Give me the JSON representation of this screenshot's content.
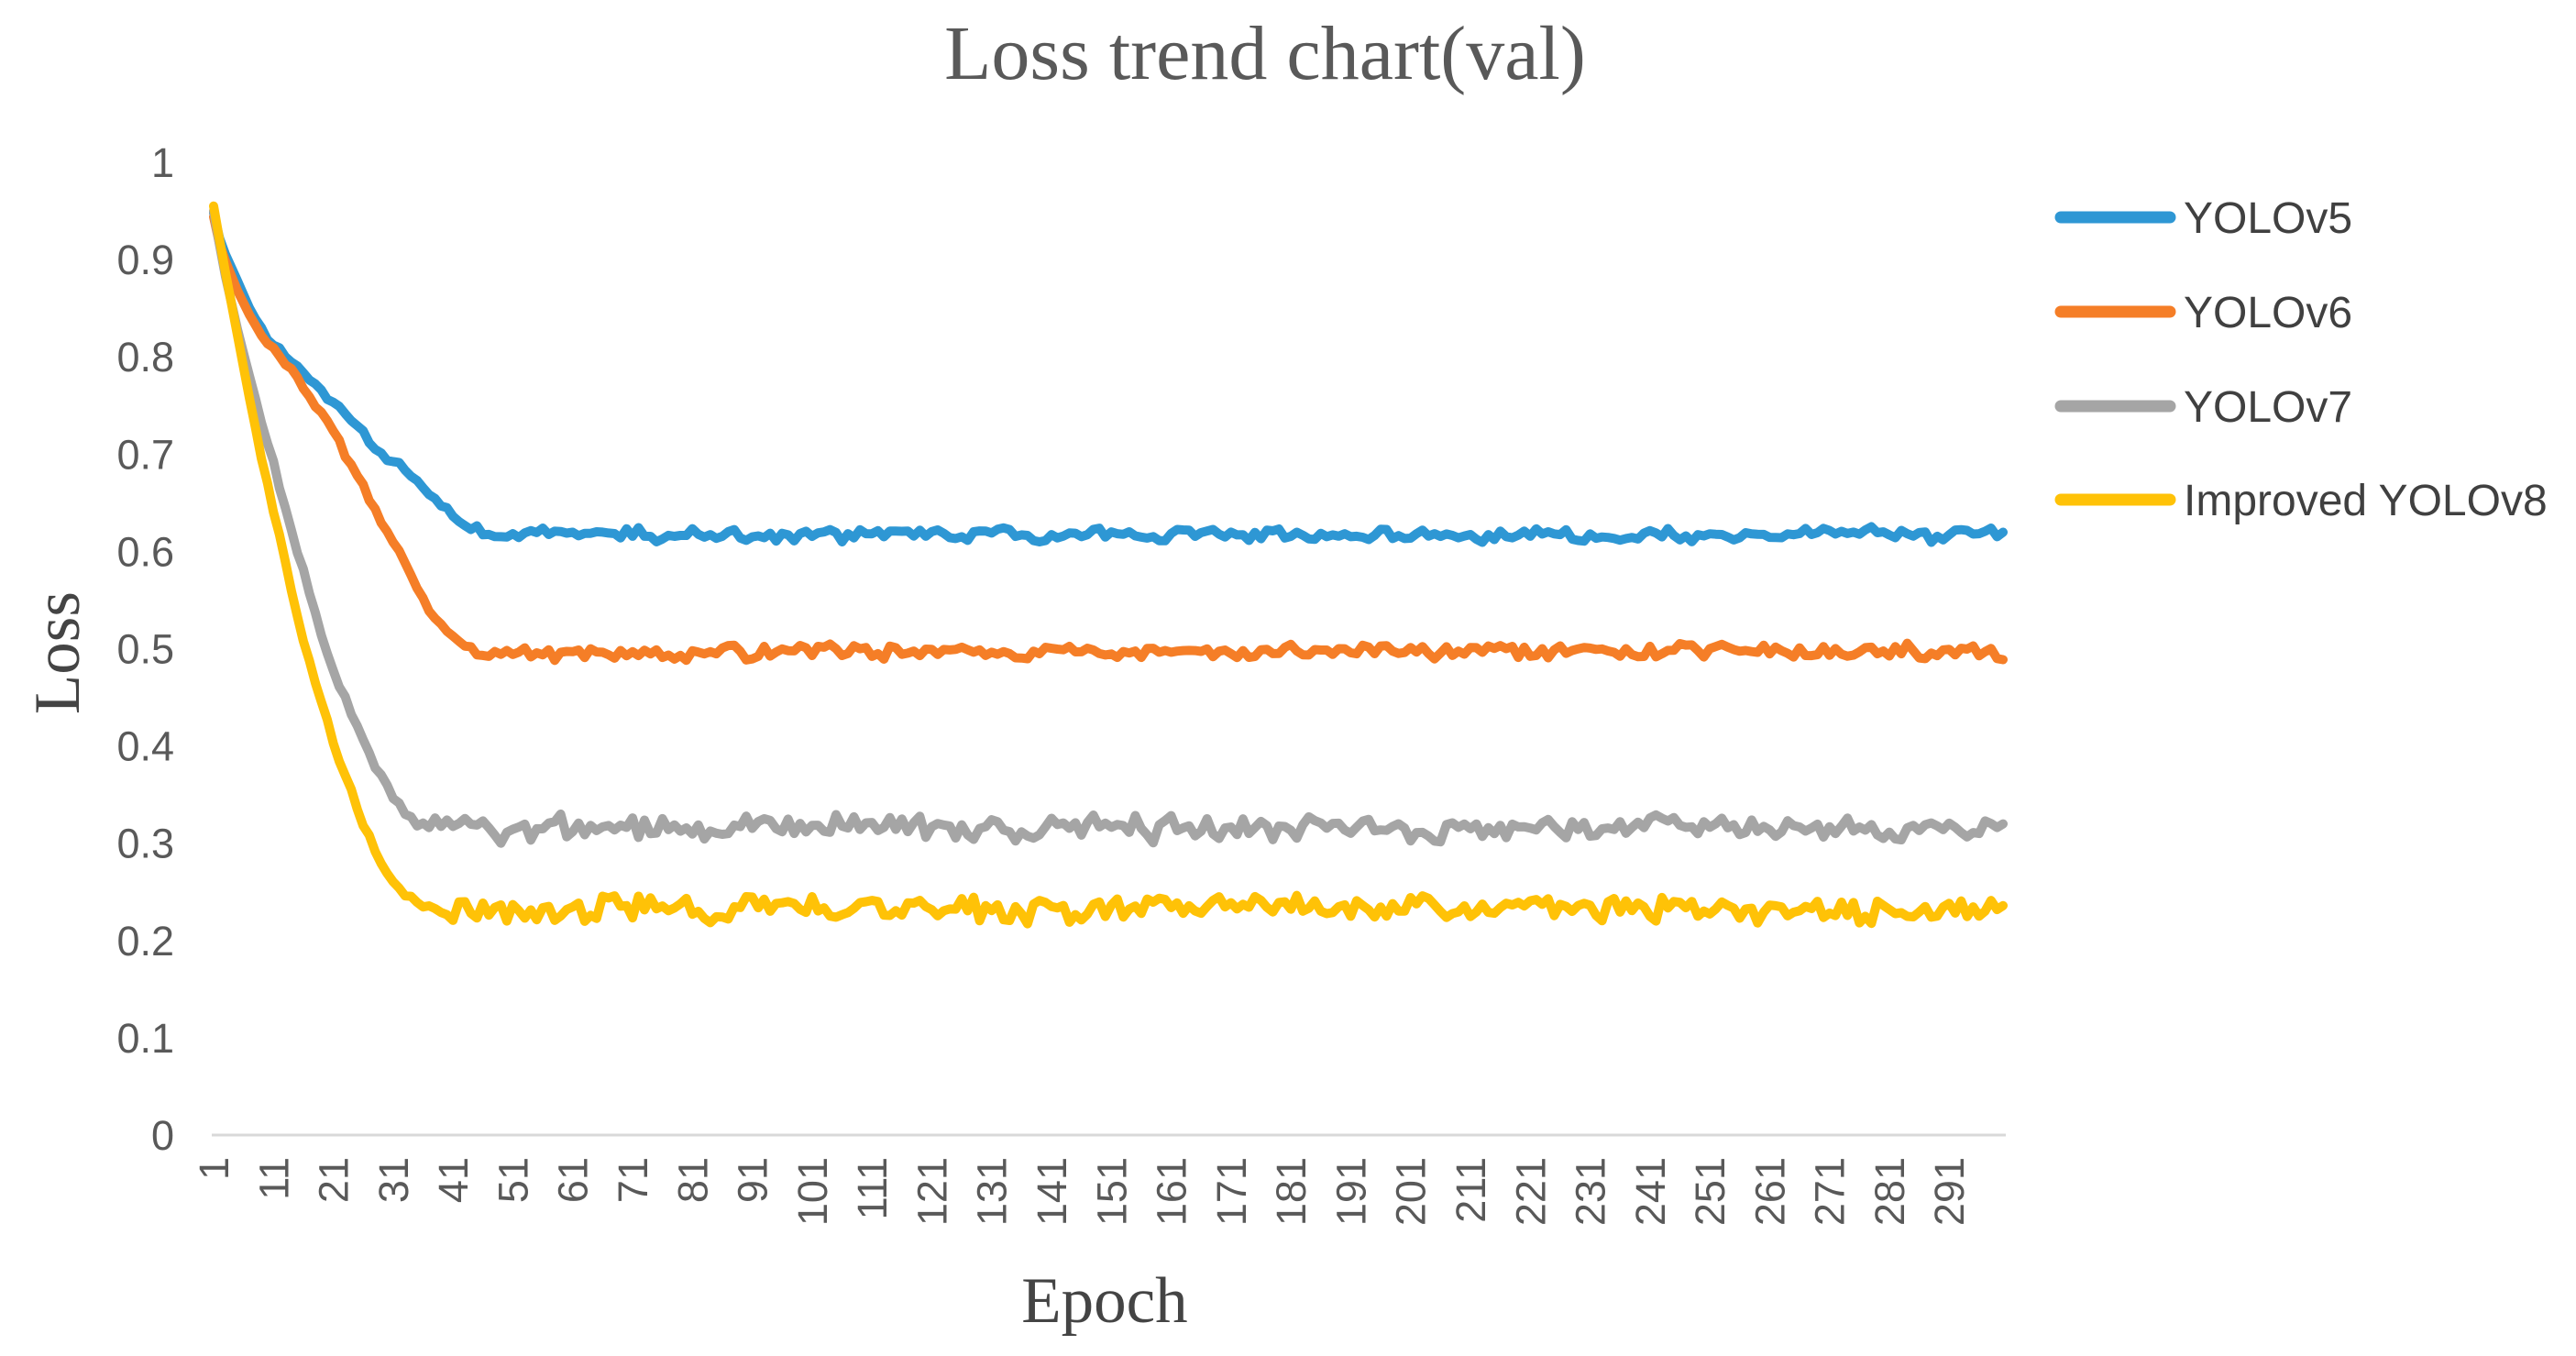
{
  "title": "Loss trend chart(val)",
  "axes": {
    "y_title": "Loss",
    "x_title": "Epoch",
    "y_tick_labels": [
      "1",
      "0.9",
      "0.8",
      "0.7",
      "0.6",
      "0.5",
      "0.4",
      "0.3",
      "0.2",
      "0.1",
      "0"
    ],
    "x_tick_labels": [
      1,
      11,
      21,
      31,
      41,
      51,
      61,
      71,
      81,
      91,
      101,
      111,
      121,
      131,
      141,
      151,
      161,
      171,
      181,
      191,
      201,
      211,
      221,
      231,
      241,
      251,
      261,
      271,
      281,
      291
    ],
    "axis_line_color": "#D9D9D9"
  },
  "legend": {
    "items": [
      {
        "label": "YOLOv5",
        "color": "#2E97D4"
      },
      {
        "label": "YOLOv6",
        "color": "#F57E27"
      },
      {
        "label": "YOLOv7",
        "color": "#A5A5A5"
      },
      {
        "label": "Improved YOLOv8",
        "color": "#FFC207"
      }
    ]
  },
  "chart_data": {
    "type": "line",
    "title": "Loss trend chart(val)",
    "xlabel": "Epoch",
    "ylabel": "Loss",
    "xlim": [
      1,
      300
    ],
    "ylim": [
      0,
      1
    ],
    "grid": "off",
    "legend_position": "right",
    "x_tick_step": 10,
    "series": [
      {
        "name": "YOLOv5",
        "color": "#2E97D4",
        "anchors": [
          [
            1,
            0.948
          ],
          [
            2,
            0.922
          ],
          [
            3,
            0.905
          ],
          [
            5,
            0.878
          ],
          [
            7,
            0.85
          ],
          [
            9,
            0.828
          ],
          [
            11,
            0.812
          ],
          [
            13,
            0.8
          ],
          [
            15,
            0.788
          ],
          [
            17,
            0.775
          ],
          [
            19,
            0.763
          ],
          [
            21,
            0.752
          ],
          [
            23,
            0.74
          ],
          [
            25,
            0.728
          ],
          [
            27,
            0.714
          ],
          [
            29,
            0.7
          ],
          [
            31,
            0.693
          ],
          [
            33,
            0.684
          ],
          [
            35,
            0.671
          ],
          [
            37,
            0.659
          ],
          [
            39,
            0.648
          ],
          [
            41,
            0.638
          ],
          [
            43,
            0.629
          ],
          [
            45,
            0.623
          ],
          [
            47,
            0.618
          ],
          [
            49,
            0.614
          ],
          [
            51,
            0.617
          ],
          [
            53,
            0.617
          ]
        ],
        "plateau": {
          "from": 53,
          "to": 300,
          "level": 0.617,
          "amplitude": 0.007
        }
      },
      {
        "name": "YOLOv6",
        "color": "#F57E27",
        "anchors": [
          [
            1,
            0.944
          ],
          [
            2,
            0.916
          ],
          [
            3,
            0.898
          ],
          [
            5,
            0.868
          ],
          [
            7,
            0.843
          ],
          [
            9,
            0.822
          ],
          [
            11,
            0.806
          ],
          [
            13,
            0.794
          ],
          [
            15,
            0.779
          ],
          [
            17,
            0.761
          ],
          [
            19,
            0.742
          ],
          [
            21,
            0.722
          ],
          [
            23,
            0.7
          ],
          [
            25,
            0.678
          ],
          [
            27,
            0.655
          ],
          [
            29,
            0.632
          ],
          [
            31,
            0.609
          ],
          [
            33,
            0.586
          ],
          [
            35,
            0.563
          ],
          [
            37,
            0.541
          ],
          [
            39,
            0.523
          ],
          [
            41,
            0.51
          ],
          [
            43,
            0.501
          ],
          [
            45,
            0.496
          ],
          [
            47,
            0.494
          ]
        ],
        "plateau": {
          "from": 47,
          "to": 300,
          "level": 0.497,
          "amplitude": 0.008
        }
      },
      {
        "name": "YOLOv7",
        "color": "#A5A5A5",
        "anchors": [
          [
            1,
            0.95
          ],
          [
            2,
            0.915
          ],
          [
            3,
            0.882
          ],
          [
            5,
            0.828
          ],
          [
            7,
            0.78
          ],
          [
            9,
            0.734
          ],
          [
            11,
            0.69
          ],
          [
            13,
            0.645
          ],
          [
            15,
            0.601
          ],
          [
            17,
            0.558
          ],
          [
            19,
            0.517
          ],
          [
            21,
            0.48
          ],
          [
            23,
            0.448
          ],
          [
            25,
            0.42
          ],
          [
            27,
            0.392
          ],
          [
            29,
            0.367
          ],
          [
            31,
            0.346
          ],
          [
            33,
            0.331
          ],
          [
            35,
            0.321
          ],
          [
            37,
            0.316
          ]
        ],
        "plateau": {
          "from": 37,
          "to": 300,
          "level": 0.315,
          "amplitude": 0.013
        }
      },
      {
        "name": "Improved YOLOv8",
        "color": "#FFC207",
        "anchors": [
          [
            1,
            0.955
          ],
          [
            2,
            0.92
          ],
          [
            3,
            0.886
          ],
          [
            5,
            0.822
          ],
          [
            7,
            0.757
          ],
          [
            9,
            0.697
          ],
          [
            11,
            0.641
          ],
          [
            13,
            0.587
          ],
          [
            15,
            0.534
          ],
          [
            17,
            0.488
          ],
          [
            19,
            0.446
          ],
          [
            21,
            0.406
          ],
          [
            23,
            0.369
          ],
          [
            25,
            0.336
          ],
          [
            27,
            0.306
          ],
          [
            29,
            0.281
          ],
          [
            31,
            0.261
          ],
          [
            33,
            0.247
          ],
          [
            35,
            0.238
          ]
        ],
        "plateau": {
          "from": 35,
          "to": 300,
          "level": 0.232,
          "amplitude": 0.013
        }
      }
    ]
  }
}
